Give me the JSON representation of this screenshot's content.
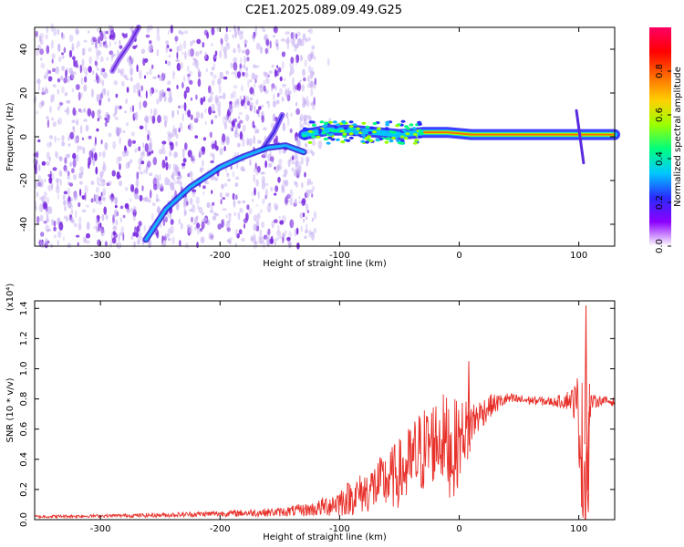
{
  "title": "C2E1.2025.089.09.49.G25",
  "colors": {
    "snr_line": "#e8302a",
    "spec_scatter": "#7a2ae0",
    "spec_scatter_faint": "#c7b0f2",
    "axis": "#000000"
  },
  "colorbar": {
    "label": "Normalized spectral amplitude",
    "range": [
      0,
      1
    ],
    "ticks": [
      "0.0",
      "0.2",
      "0.4",
      "0.6",
      "0.8"
    ],
    "tick_values": [
      0,
      0.2,
      0.4,
      0.6,
      0.8
    ],
    "colormap": [
      "#ffffff",
      "#8c00ff",
      "#2a2aff",
      "#00c8ff",
      "#00ff7f",
      "#9cff00",
      "#ffd000",
      "#ff6a00",
      "#ff0000",
      "#ff0066"
    ]
  },
  "chart_data": [
    {
      "type": "heatmap",
      "xlabel": "Height of straight line (km)",
      "ylabel": "Frequency (Hz)",
      "xlim": [
        -355,
        130
      ],
      "ylim": [
        -50,
        50
      ],
      "xticks": [
        -300,
        -200,
        -100,
        0,
        100
      ],
      "xtick_labels": [
        "-300",
        "-200",
        "-100",
        "0",
        "100"
      ],
      "yticks": [
        -40,
        -20,
        0,
        20,
        40
      ],
      "ytick_labels": [
        "-40",
        "-20",
        "0",
        "20",
        "40"
      ],
      "features": {
        "noise_region_x": [
          -355,
          -120
        ],
        "ascending_arc": [
          [
            -262,
            -47
          ],
          [
            -245,
            -33
          ],
          [
            -225,
            -23
          ],
          [
            -200,
            -14
          ],
          [
            -180,
            -9
          ],
          [
            -160,
            -5
          ],
          [
            -145,
            -4
          ],
          [
            -130,
            -7
          ]
        ],
        "upper_arc": [
          [
            -290,
            30
          ],
          [
            -285,
            35
          ],
          [
            -275,
            43
          ],
          [
            -268,
            50
          ]
        ],
        "mid_branch": [
          [
            -165,
            -6
          ],
          [
            -155,
            2
          ],
          [
            -148,
            10
          ]
        ],
        "main_trace": [
          [
            -130,
            1
          ],
          [
            -110,
            3
          ],
          [
            -90,
            3
          ],
          [
            -70,
            2
          ],
          [
            -50,
            1
          ],
          [
            -30,
            2
          ],
          [
            -10,
            2
          ],
          [
            10,
            1
          ],
          [
            40,
            1
          ],
          [
            70,
            1
          ],
          [
            100,
            1
          ],
          [
            130,
            1
          ]
        ],
        "spike_x": 100,
        "spike_range": [
          -12,
          12
        ]
      }
    },
    {
      "type": "line",
      "xlabel": "Height of straight line (km)",
      "ylabel": "SNR (10 * v/v)",
      "y_multiplier": "(x10⁴)",
      "xlim": [
        -355,
        130
      ],
      "ylim": [
        0,
        1.45
      ],
      "xticks": [
        -300,
        -200,
        -100,
        0,
        100
      ],
      "xtick_labels": [
        "-300",
        "-200",
        "-100",
        "0",
        "100"
      ],
      "yticks": [
        0.0,
        0.2,
        0.4,
        0.6,
        0.8,
        1.0,
        1.2,
        1.4
      ],
      "ytick_labels": [
        "0.0",
        "0.2",
        "0.4",
        "0.6",
        "0.8",
        "1.0",
        "1.2",
        "1.4"
      ],
      "series": [
        {
          "x": [
            -355,
            -300,
            -250,
            -200,
            -150,
            -120,
            -100,
            -80,
            -60,
            -45,
            -35,
            -25,
            -15,
            -5,
            5,
            15,
            25,
            40,
            60,
            80,
            95,
            100,
            103,
            106,
            110,
            120,
            130
          ],
          "y": [
            0.02,
            0.025,
            0.03,
            0.04,
            0.05,
            0.07,
            0.12,
            0.18,
            0.26,
            0.33,
            0.42,
            0.5,
            0.55,
            0.45,
            0.6,
            0.68,
            0.75,
            0.8,
            0.79,
            0.78,
            0.8,
            0.7,
            0.4,
            0.3,
            0.78,
            0.79,
            0.78
          ],
          "band": [
            0.01,
            0.01,
            0.015,
            0.02,
            0.03,
            0.05,
            0.1,
            0.14,
            0.2,
            0.25,
            0.3,
            0.28,
            0.3,
            0.35,
            0.2,
            0.12,
            0.08,
            0.04,
            0.03,
            0.03,
            0.08,
            0.3,
            0.55,
            0.55,
            0.05,
            0.03,
            0.03
          ]
        }
      ]
    }
  ]
}
